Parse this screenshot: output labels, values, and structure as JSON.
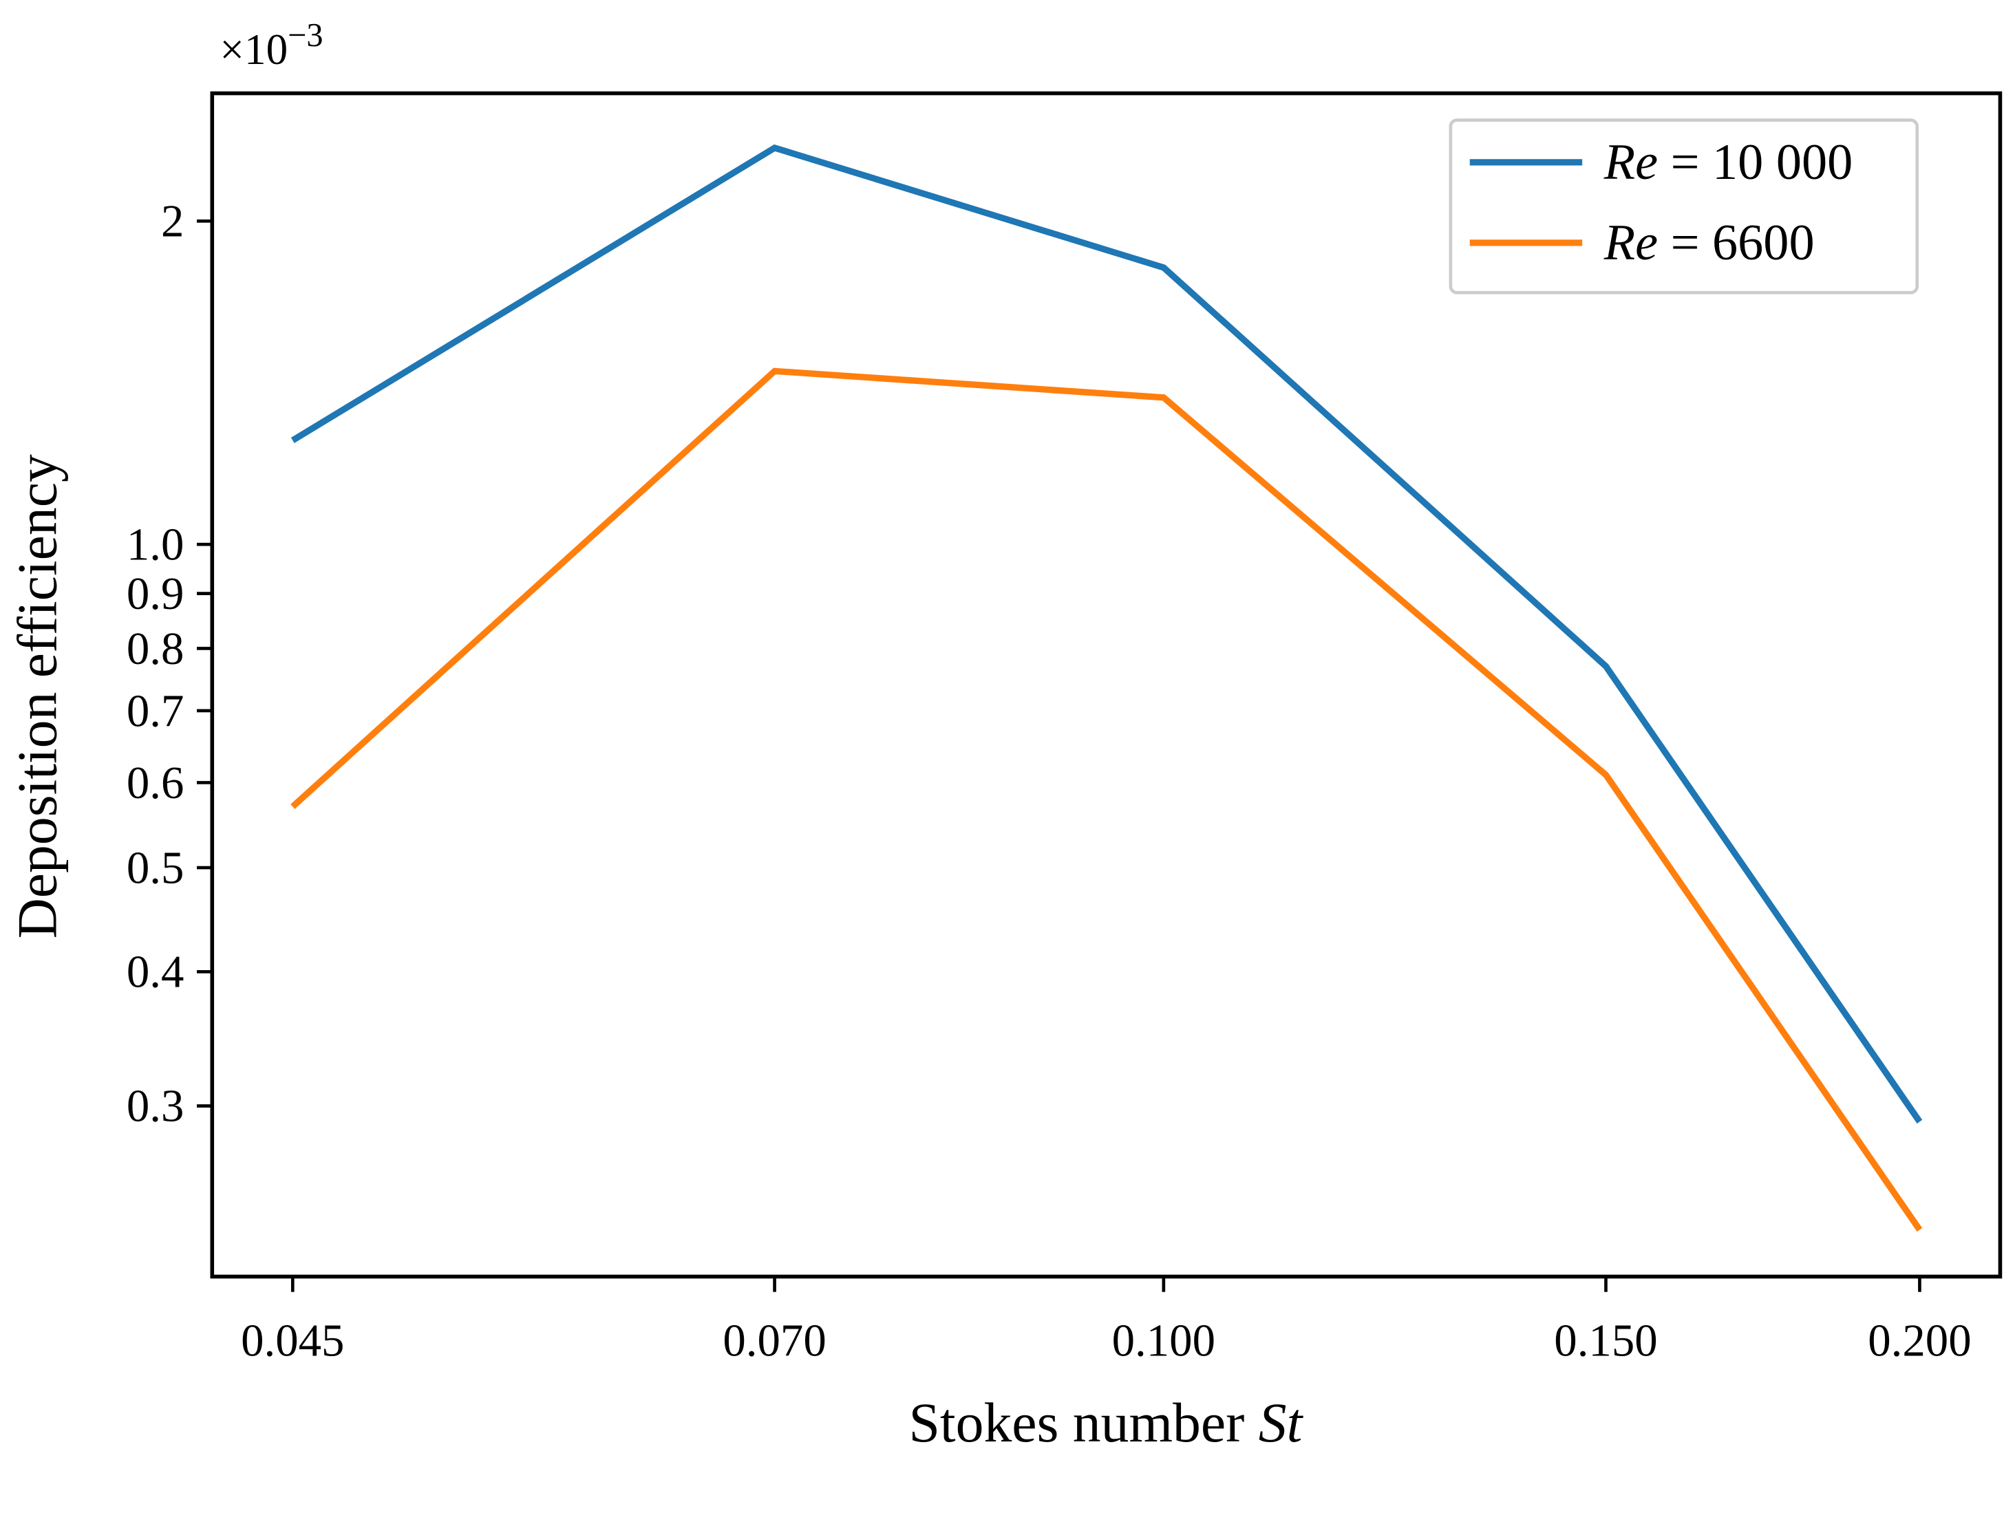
{
  "chart_data": {
    "type": "line",
    "title": "",
    "xlabel": "Stokes number St",
    "xlabel_parts": {
      "plain": "Stokes number ",
      "italic": "St"
    },
    "ylabel": "Deposition efficiency",
    "y_offset_text": {
      "base": "×10",
      "exponent": "−3"
    },
    "x_scale": "log",
    "y_scale": "log",
    "xlim": [
      0.042,
      0.212
    ],
    "ylim": [
      0.208,
      2.63
    ],
    "x": [
      0.045,
      0.07,
      0.1,
      0.15,
      0.2
    ],
    "x_tick_labels": [
      "0.045",
      "0.070",
      "0.100",
      "0.150",
      "0.200"
    ],
    "y_ticks": [
      0.3,
      0.4,
      0.5,
      0.6,
      0.7,
      0.8,
      0.9,
      1.0,
      2
    ],
    "y_tick_labels": [
      "0.3",
      "0.4",
      "0.5",
      "0.6",
      "0.7",
      "0.8",
      "0.9",
      "1.0",
      "2"
    ],
    "y_unit_multiplier": 0.001,
    "grid": false,
    "legend_position": "upper right",
    "series": [
      {
        "name": "Re = 10000",
        "label_italic": "Re",
        "label_rest": " = 10 000",
        "color": "#1f77b4",
        "values": [
          1.25,
          2.34,
          1.81,
          0.77,
          0.29
        ]
      },
      {
        "name": "Re = 6600",
        "label_italic": "Re",
        "label_rest": " = 6600",
        "color": "#ff7f0e",
        "values": [
          0.57,
          1.45,
          1.37,
          0.61,
          0.23
        ]
      }
    ]
  }
}
